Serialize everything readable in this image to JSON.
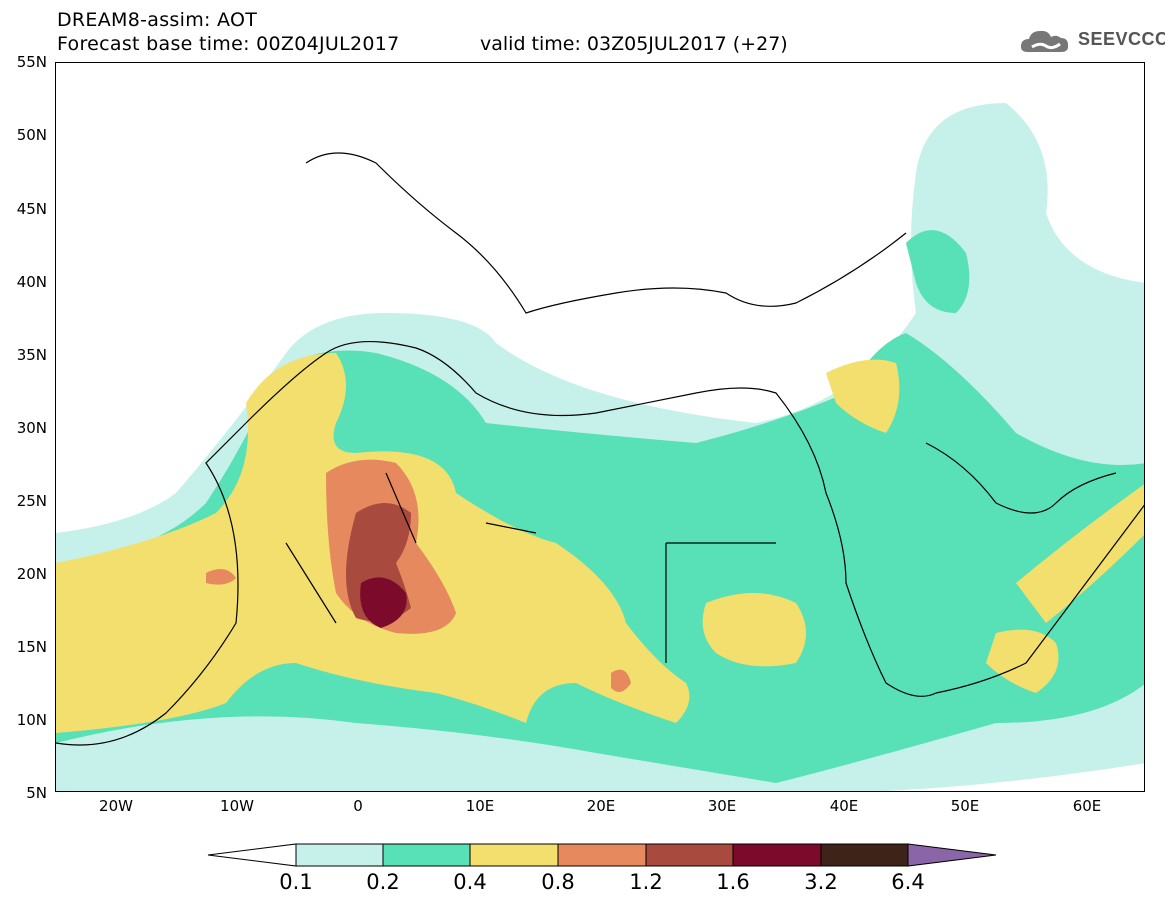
{
  "header": {
    "title": "DREAM8-assim: AOT",
    "base_time_label": "Forecast base time: 00Z04JUL2017",
    "valid_time_label": "valid time: 03Z05JUL2017 (+27)"
  },
  "logo": {
    "text": "SEEVCCC",
    "icon": "cloud-logo-icon"
  },
  "map": {
    "lat_labels": [
      "55N",
      "50N",
      "45N",
      "40N",
      "35N",
      "30N",
      "25N",
      "20N",
      "15N",
      "10N",
      "5N"
    ],
    "lon_labels": [
      "20W",
      "10W",
      "0",
      "10E",
      "20E",
      "30E",
      "40E",
      "50E",
      "60E"
    ],
    "variable": "AOT"
  },
  "legend": {
    "thresholds": [
      "0.1",
      "0.2",
      "0.4",
      "0.8",
      "1.2",
      "1.6",
      "3.2",
      "6.4"
    ],
    "colors": {
      "below_0.1": "#ffffff",
      "0.1-0.2": "#c6f1ea",
      "0.2-0.4": "#58e0b6",
      "0.4-0.8": "#f3df6e",
      "0.8-1.2": "#e6895f",
      "1.2-1.6": "#a84a3e",
      "1.6-3.2": "#7b0a2b",
      "3.2-6.4": "#3e2418",
      "above_6.4": "#8a66a8"
    }
  }
}
